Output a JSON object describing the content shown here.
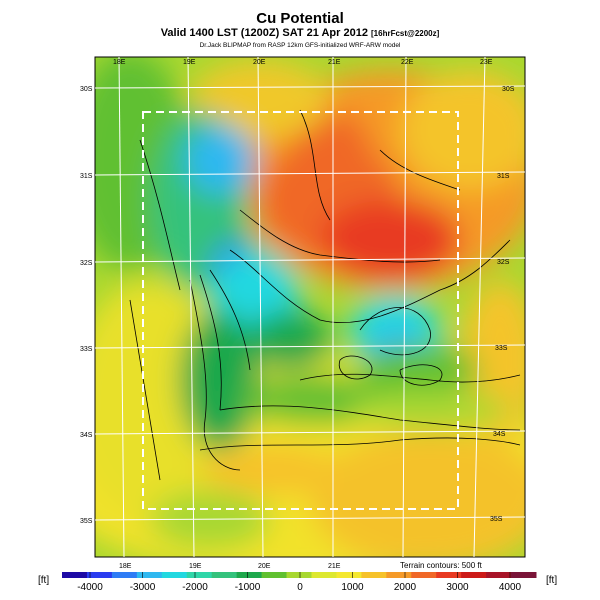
{
  "title": "Cu Potential",
  "subtitle_main": "Valid 1400 LST (1200Z) SAT 21 Apr 2012",
  "subtitle_fcst": "[16hrFcst@2200z]",
  "credit": "Dr.Jack BLIPMAP from RASP 12km GFS-initialized WRF-ARW model",
  "lon_labels": [
    "18E",
    "19E",
    "20E",
    "21E",
    "22E",
    "23E"
  ],
  "lat_labels": [
    "30S",
    "31S",
    "32S",
    "33S",
    "34S",
    "35S"
  ],
  "terrain_note": "Terrain contours: 500 ft",
  "colorbar": {
    "unit_left": "[ft]",
    "unit_right": "[ft]",
    "ticks": [
      "-4000",
      "-3000",
      "-2000",
      "-1000",
      "0",
      "1000",
      "2000",
      "3000",
      "4000"
    ],
    "colors": [
      "#1d0aa5",
      "#2a3cf0",
      "#2f7cf5",
      "#2fb8f0",
      "#22d8e0",
      "#2fd6a8",
      "#34c27c",
      "#1ea84c",
      "#60c030",
      "#a8d830",
      "#dde830",
      "#f4e830",
      "#f6c22a",
      "#f59a28",
      "#f06828",
      "#e83a22",
      "#cc1a18",
      "#a81428",
      "#7a1438"
    ]
  },
  "legend_description": "Filled color map of cumulus potential over southwestern South Africa with terrain contour lines and lat/lon grid"
}
